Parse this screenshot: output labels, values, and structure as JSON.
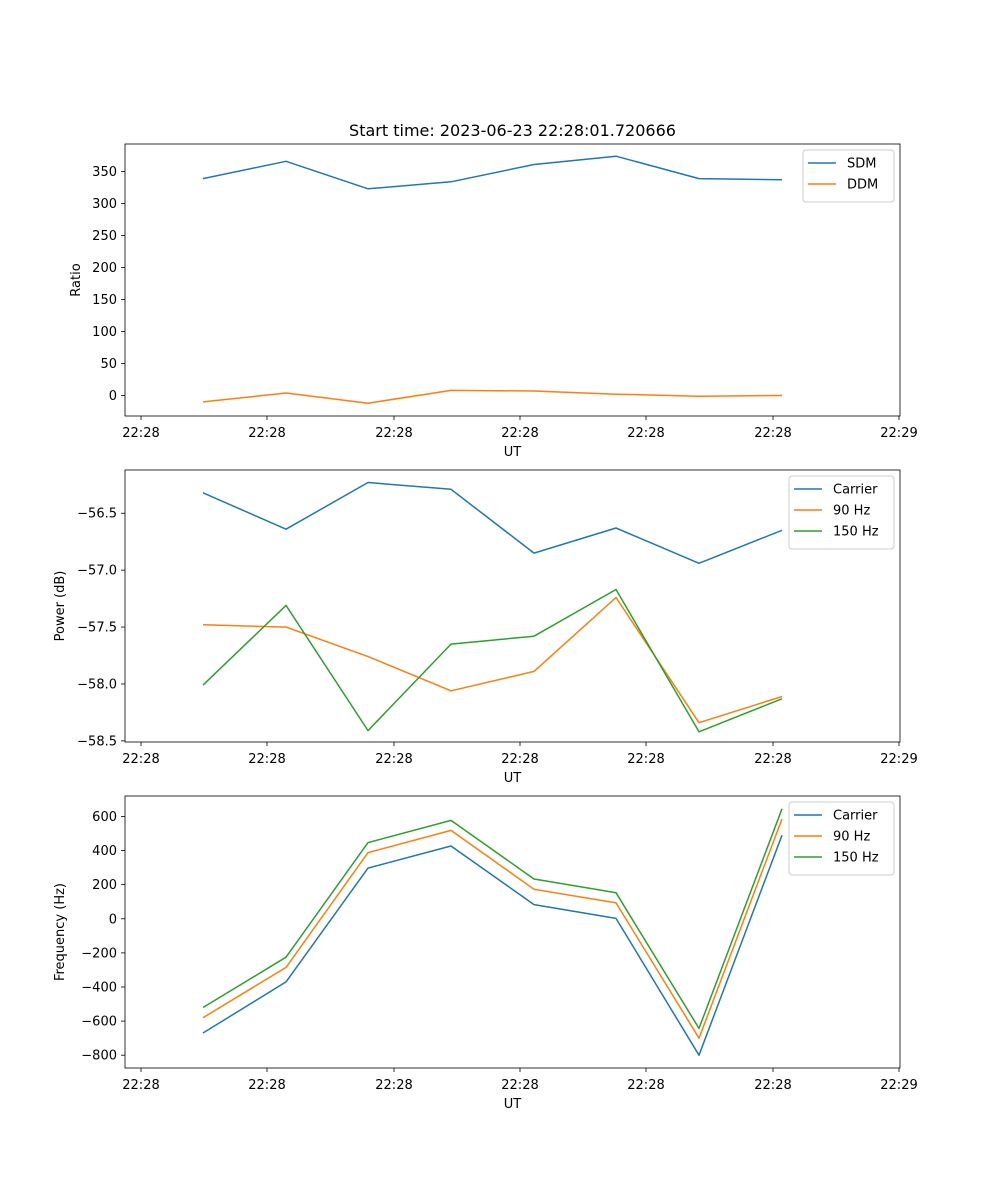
{
  "figure": {
    "title": "Start time: 2023-06-23 22:28:01.720666"
  },
  "chart_data": [
    {
      "type": "line",
      "title": "Start time: 2023-06-23 22:28:01.720666",
      "xlabel": "UT",
      "ylabel": "Ratio",
      "x_tick_labels": [
        "22:28",
        "22:28",
        "22:28",
        "22:28",
        "22:28",
        "22:28",
        "22:28"
      ],
      "y_ticks": [
        0,
        50,
        100,
        150,
        200,
        250,
        300,
        350
      ],
      "ylim": [
        -32,
        393
      ],
      "grid": false,
      "legend_position": "upper right",
      "series": [
        {
          "name": "SDM",
          "color": "#1f77b4",
          "values": [
            339,
            366,
            323,
            334,
            361,
            374,
            339,
            337
          ]
        },
        {
          "name": "DDM",
          "color": "#ff7f0e",
          "values": [
            -10,
            4,
            -12,
            8,
            7,
            2,
            -1,
            0
          ]
        }
      ]
    },
    {
      "type": "line",
      "xlabel": "UT",
      "ylabel": "Power (dB)",
      "x_tick_labels": [
        "22:28",
        "22:28",
        "22:28",
        "22:28",
        "22:28",
        "22:28",
        "22:28"
      ],
      "y_ticks": [
        -58.5,
        -58.0,
        -57.5,
        -57.0,
        -56.5
      ],
      "y_tick_labels": [
        "−58.5",
        "−58.0",
        "−57.5",
        "−57.0",
        "−56.5"
      ],
      "ylim": [
        -58.51,
        -56.12
      ],
      "grid": false,
      "legend_position": "upper right",
      "series": [
        {
          "name": "Carrier",
          "color": "#1f77b4",
          "values": [
            -56.32,
            -56.64,
            -56.23,
            -56.29,
            -56.85,
            -56.63,
            -56.94,
            -56.65
          ]
        },
        {
          "name": "90 Hz",
          "color": "#ff7f0e",
          "values": [
            -57.48,
            -57.5,
            -57.76,
            -58.06,
            -57.89,
            -57.24,
            -58.34,
            -58.11
          ]
        },
        {
          "name": "150 Hz",
          "color": "#2ca02c",
          "values": [
            -58.01,
            -57.31,
            -58.41,
            -57.65,
            -57.58,
            -57.17,
            -58.42,
            -58.13
          ]
        }
      ]
    },
    {
      "type": "line",
      "xlabel": "UT",
      "ylabel": "Frequency (Hz)",
      "x_tick_labels": [
        "22:28",
        "22:28",
        "22:28",
        "22:28",
        "22:28",
        "22:28",
        "22:28"
      ],
      "y_ticks": [
        -800,
        -600,
        -400,
        -200,
        0,
        200,
        400,
        600
      ],
      "y_tick_labels": [
        "−800",
        "−600",
        "−400",
        "−200",
        "0",
        "200",
        "400",
        "600"
      ],
      "ylim": [
        -875,
        720
      ],
      "grid": false,
      "legend_position": "upper right",
      "series": [
        {
          "name": "Carrier",
          "color": "#1f77b4",
          "values": [
            -670,
            -370,
            297,
            427,
            83,
            2,
            -800,
            490
          ]
        },
        {
          "name": "90 Hz",
          "color": "#ff7f0e",
          "values": [
            -580,
            -285,
            388,
            518,
            173,
            93,
            -700,
            585
          ]
        },
        {
          "name": "150 Hz",
          "color": "#2ca02c",
          "values": [
            -520,
            -225,
            447,
            577,
            233,
            153,
            -643,
            645
          ]
        }
      ]
    }
  ]
}
